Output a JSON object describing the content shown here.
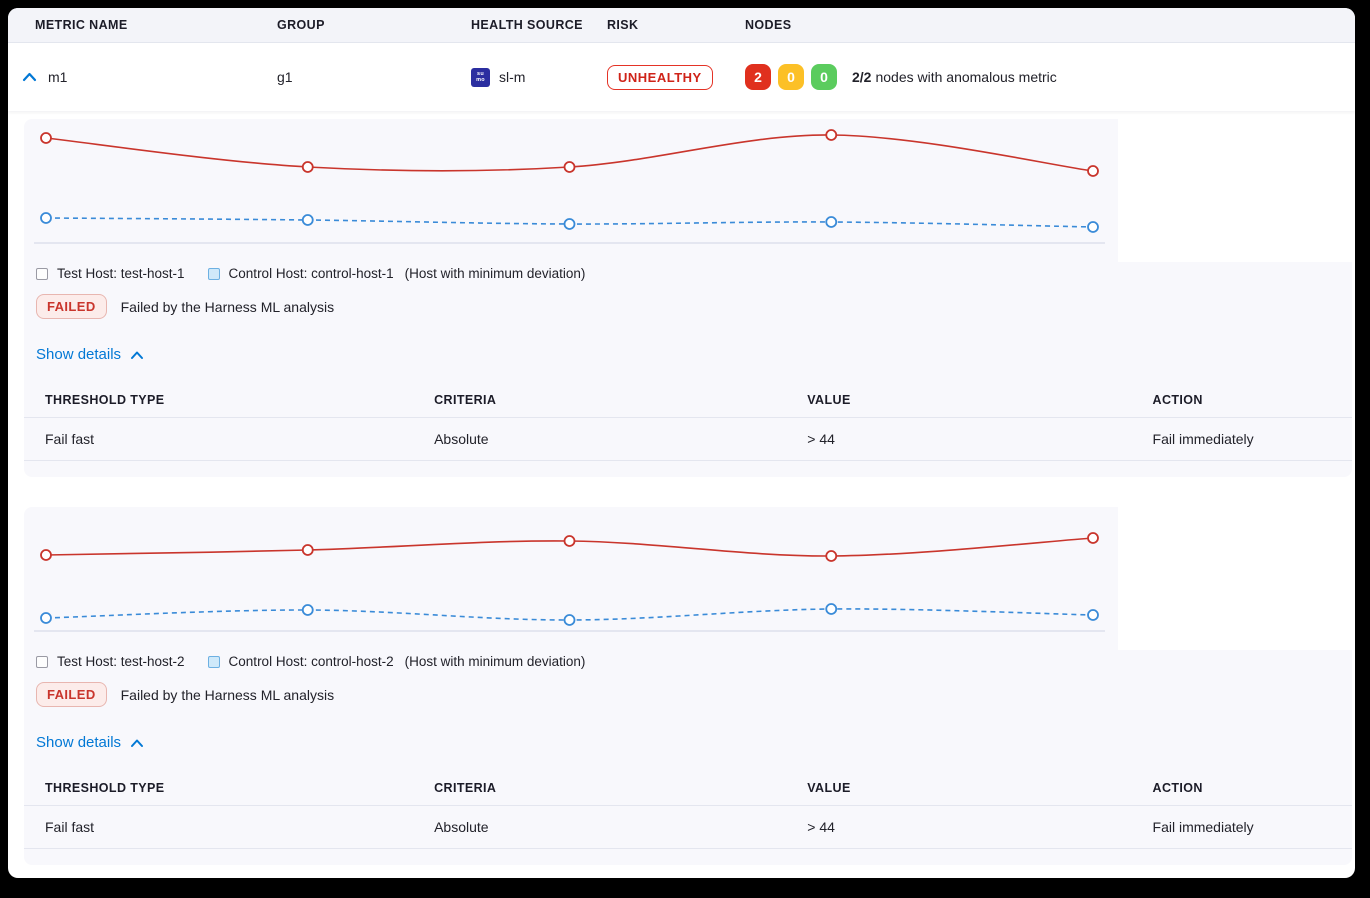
{
  "header": {
    "columns": [
      "METRIC NAME",
      "GROUP",
      "HEALTH SOURCE",
      "RISK",
      "NODES"
    ]
  },
  "metric_row": {
    "name": "m1",
    "group": "g1",
    "health_source": {
      "label": "sl-m",
      "icon": "sumo-logic-icon",
      "icon_lines": [
        "su",
        "mo"
      ]
    },
    "risk": "UNHEALTHY",
    "nodes": {
      "counts": [
        {
          "value": "2",
          "color": "#e0301e"
        },
        {
          "value": "0",
          "color": "#fcc026"
        },
        {
          "value": "0",
          "color": "#5bcc5e"
        }
      ],
      "summary_bold": "2/2",
      "summary_text": "nodes with anomalous metric"
    }
  },
  "sections": [
    {
      "legend": {
        "test_label": "Test Host: test-host-1",
        "control_label": "Control Host: control-host-1",
        "note": "(Host with minimum deviation)"
      },
      "status": {
        "badge": "FAILED",
        "message": "Failed by the Harness ML analysis"
      },
      "details_toggle": "Show details",
      "table": {
        "columns": [
          "THRESHOLD TYPE",
          "CRITERIA",
          "VALUE",
          "ACTION"
        ],
        "rows": [
          {
            "threshold_type": "Fail fast",
            "criteria": "Absolute",
            "value": "> 44",
            "action": "Fail immediately"
          }
        ]
      }
    },
    {
      "legend": {
        "test_label": "Test Host: test-host-2",
        "control_label": "Control Host: control-host-2",
        "note": "(Host with minimum deviation)"
      },
      "status": {
        "badge": "FAILED",
        "message": "Failed by the Harness ML analysis"
      },
      "details_toggle": "Show details",
      "table": {
        "columns": [
          "THRESHOLD TYPE",
          "CRITERIA",
          "VALUE",
          "ACTION"
        ],
        "rows": [
          {
            "threshold_type": "Fail fast",
            "criteria": "Absolute",
            "value": "> 44",
            "action": "Fail immediately"
          }
        ]
      }
    }
  ],
  "chart_data": [
    {
      "type": "line",
      "x": [
        1,
        2,
        3,
        4,
        5
      ],
      "x_tick_labels": [],
      "ylim": [
        0,
        100
      ],
      "grid": false,
      "legend_position": "below",
      "series": [
        {
          "name": "Test Host: test-host-1",
          "color": "#c9352c",
          "style": "solid",
          "values": [
            87.5,
            63.3,
            63.3,
            90.0,
            60.0
          ]
        },
        {
          "name": "Control Host: control-host-1",
          "color": "#3a8bd8",
          "style": "dashed",
          "values": [
            20.8,
            19.2,
            15.8,
            17.5,
            13.3
          ]
        }
      ]
    },
    {
      "type": "line",
      "x": [
        1,
        2,
        3,
        4,
        5
      ],
      "x_tick_labels": [],
      "ylim": [
        0,
        100
      ],
      "grid": false,
      "legend_position": "below",
      "series": [
        {
          "name": "Test Host: test-host-2",
          "color": "#c9352c",
          "style": "solid",
          "values": [
            63.3,
            67.5,
            75.0,
            62.5,
            77.5
          ]
        },
        {
          "name": "Control Host: control-host-2",
          "color": "#3a8bd8",
          "style": "dashed",
          "values": [
            10.8,
            17.5,
            9.2,
            18.3,
            13.3
          ]
        }
      ]
    }
  ],
  "colors": {
    "primary_blue": "#0278d5",
    "risk_red": "#cf2318",
    "failed_red": "#c9352c",
    "test_line": "#c9352c",
    "control_line": "#3a8bd8",
    "axis_line": "#d8dce8"
  }
}
